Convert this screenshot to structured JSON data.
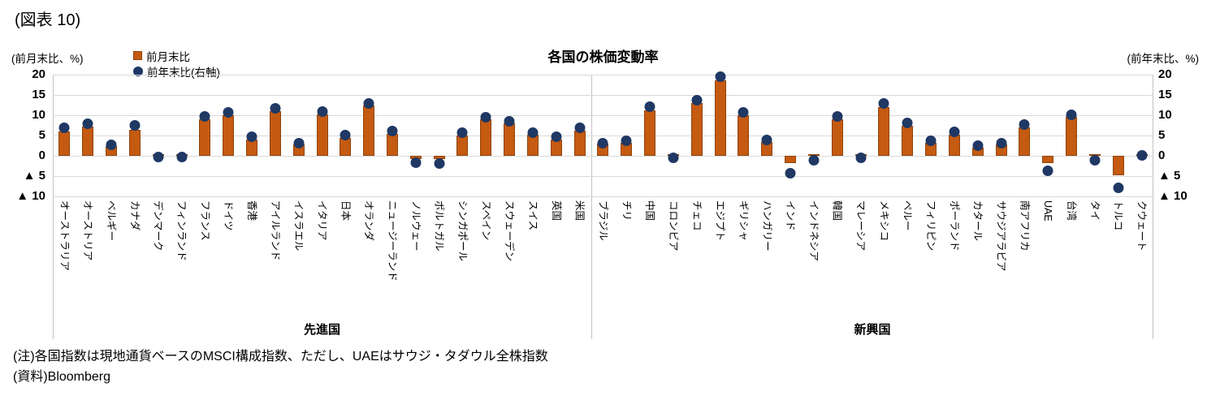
{
  "figure_label": "(図表 10)",
  "notes": [
    "(注)各国指数は現地通貨ベースのMSCI構成指数、ただし、UAEはサウジ・タダウル全株指数",
    "(資料)Bloomberg"
  ],
  "chart_data": {
    "type": "bar",
    "title": "各国の株価変動率",
    "left_axis_label": "(前月末比、%)",
    "right_axis_label": "(前年末比、%)",
    "ylim": [
      -10,
      20
    ],
    "y_tick_step": 5,
    "y_tick_labels": [
      "20",
      "15",
      "10",
      "5",
      "0",
      "▲ 5",
      "▲ 10"
    ],
    "grid": true,
    "legend_position": "top-left",
    "colors": {
      "bar": "#C55A11",
      "bar_border": "#8F450B",
      "dot": "#1F3864",
      "gridline": "#D9D9D9"
    },
    "categories": [
      "オーストラリア",
      "オーストリア",
      "ベルギー",
      "カナダ",
      "デンマーク",
      "フィンランド",
      "フランス",
      "ドイツ",
      "香港",
      "アイルランド",
      "イスラエル",
      "イタリア",
      "日本",
      "オランダ",
      "ニュージーランド",
      "ノルウェー",
      "ポルトガル",
      "シンガポール",
      "スペイン",
      "スウェーデン",
      "スイス",
      "英国",
      "米国",
      "ブラジル",
      "チリ",
      "中国",
      "コロンビア",
      "チェコ",
      "エジプト",
      "ギリシャ",
      "ハンガリー",
      "インド",
      "インドネシア",
      "韓国",
      "マレーシア",
      "メキシコ",
      "ペルー",
      "フィリピン",
      "ポーランド",
      "カタール",
      "サウジアラビア",
      "南アフリカ",
      "UAE",
      "台湾",
      "タイ",
      "トルコ",
      "クウェート"
    ],
    "series": [
      {
        "name": "前月末比",
        "type": "bar",
        "axis": "left",
        "color": "#C55A11",
        "values": [
          6.0,
          7.2,
          2.5,
          6.5,
          0.2,
          0.2,
          9.0,
          10.0,
          4.0,
          11.0,
          2.8,
          10.3,
          4.5,
          12.5,
          5.5,
          -0.8,
          -0.8,
          5.0,
          9.0,
          8.0,
          5.2,
          4.0,
          6.3,
          3.0,
          3.3,
          11.2,
          0.2,
          13.0,
          18.7,
          10.0,
          3.5,
          -1.8,
          0.2,
          9.0,
          0.3,
          12.0,
          7.5,
          3.3,
          5.3,
          2.0,
          2.8,
          7.0,
          -1.8,
          9.7,
          0.2,
          -4.8,
          0.1
        ]
      },
      {
        "name": "前年末比(右軸)",
        "type": "scatter",
        "axis": "right",
        "color": "#1F3864",
        "values": [
          7.0,
          8.0,
          2.8,
          7.5,
          -0.3,
          -0.3,
          9.7,
          10.8,
          4.8,
          11.7,
          3.2,
          11.0,
          5.2,
          13.0,
          6.2,
          -1.7,
          -1.8,
          5.8,
          9.5,
          8.5,
          5.8,
          4.7,
          7.0,
          3.2,
          3.8,
          12.2,
          -0.5,
          13.7,
          19.5,
          10.7,
          4.0,
          -4.2,
          -1.0,
          9.8,
          -0.5,
          13.0,
          8.2,
          3.8,
          6.0,
          2.5,
          3.2,
          7.8,
          -3.7,
          10.2,
          -1.0,
          -7.8,
          0.2
        ]
      }
    ],
    "groups": [
      {
        "label": "先進国",
        "count": 23
      },
      {
        "label": "新興国",
        "count": 24
      }
    ]
  }
}
